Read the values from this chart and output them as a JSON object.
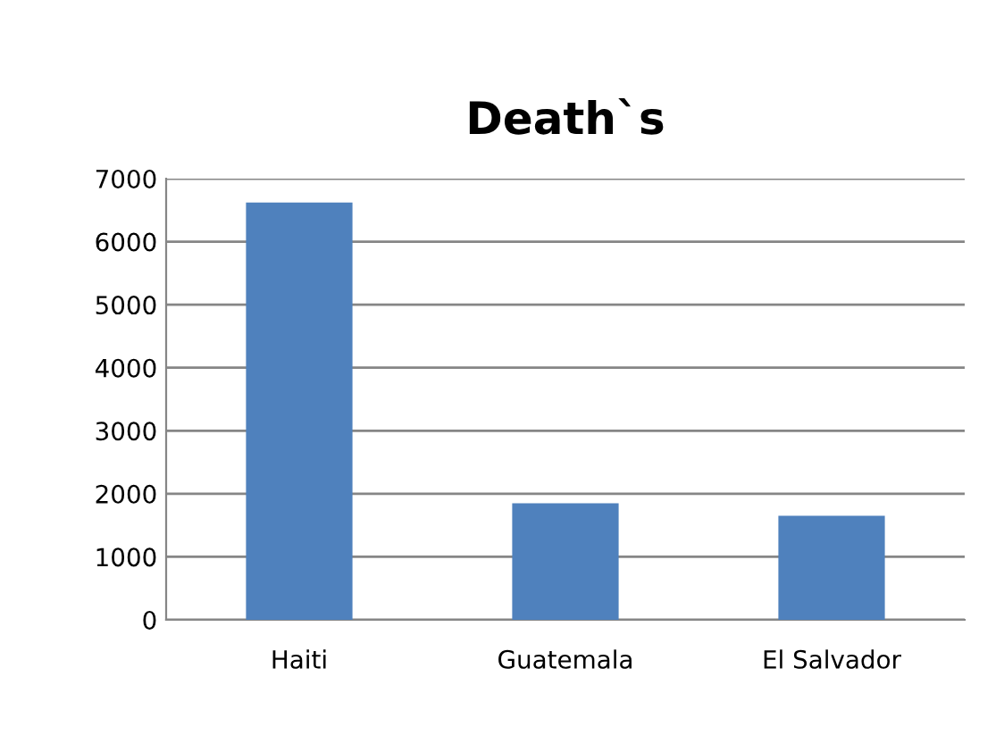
{
  "chart_data": {
    "type": "bar",
    "title": "Death`s",
    "categories": [
      "Haiti",
      "Guatemala",
      "El Salvador"
    ],
    "values": [
      6620,
      1850,
      1650
    ],
    "color": "#4f81bd",
    "ylim": [
      0,
      7000
    ],
    "yticks": [
      0,
      1000,
      2000,
      3000,
      4000,
      5000,
      6000,
      7000
    ],
    "grid": "y",
    "legend": false
  }
}
